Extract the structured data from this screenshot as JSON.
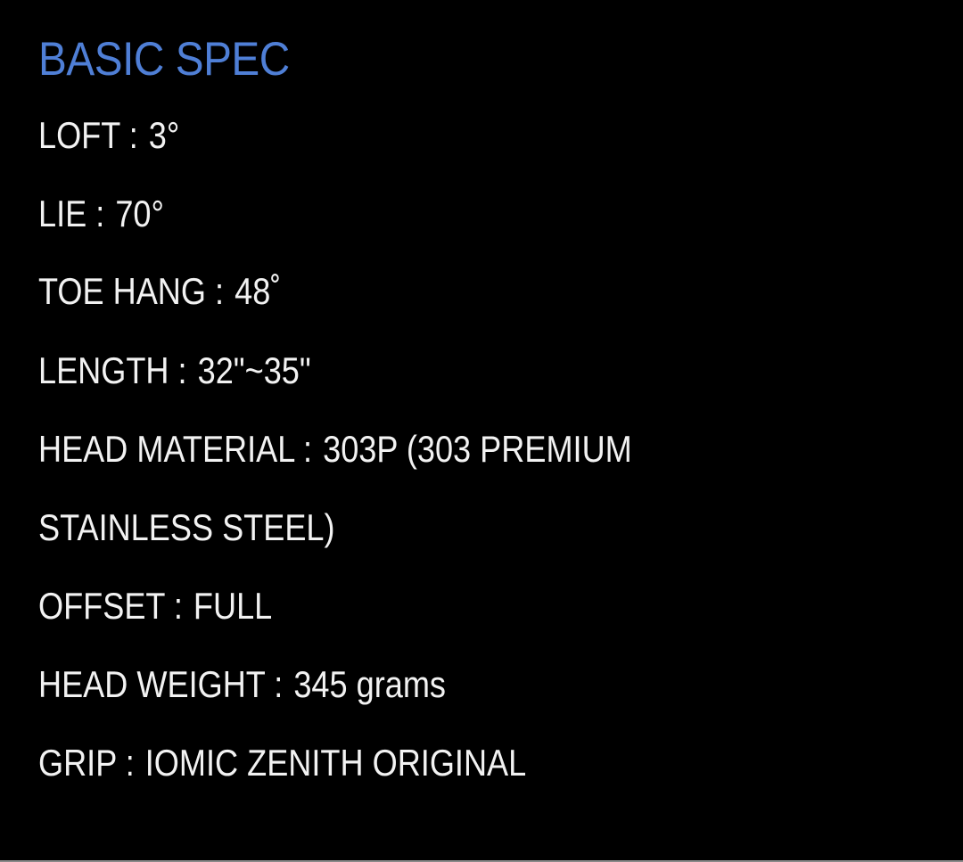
{
  "title": "BASIC SPEC",
  "title_color": "#4f7fd6",
  "specs": [
    {
      "label": "LOFT :",
      "value": "3°"
    },
    {
      "label": "LIE :",
      "value": "70°"
    },
    {
      "label": "TOE HANG :",
      "value": "48˚"
    },
    {
      "label": "LENGTH :",
      "value": "32\"~35\""
    },
    {
      "label": "HEAD MATERIAL :",
      "value": "303P (303 PREMIUM"
    },
    {
      "label": "",
      "value": "STAINLESS STEEL)"
    },
    {
      "label": "OFFSET :",
      "value": "FULL"
    },
    {
      "label": "HEAD WEIGHT :",
      "value": "345 grams"
    },
    {
      "label": "GRIP :",
      "value": "IOMIC ZENITH ORIGINAL"
    }
  ]
}
